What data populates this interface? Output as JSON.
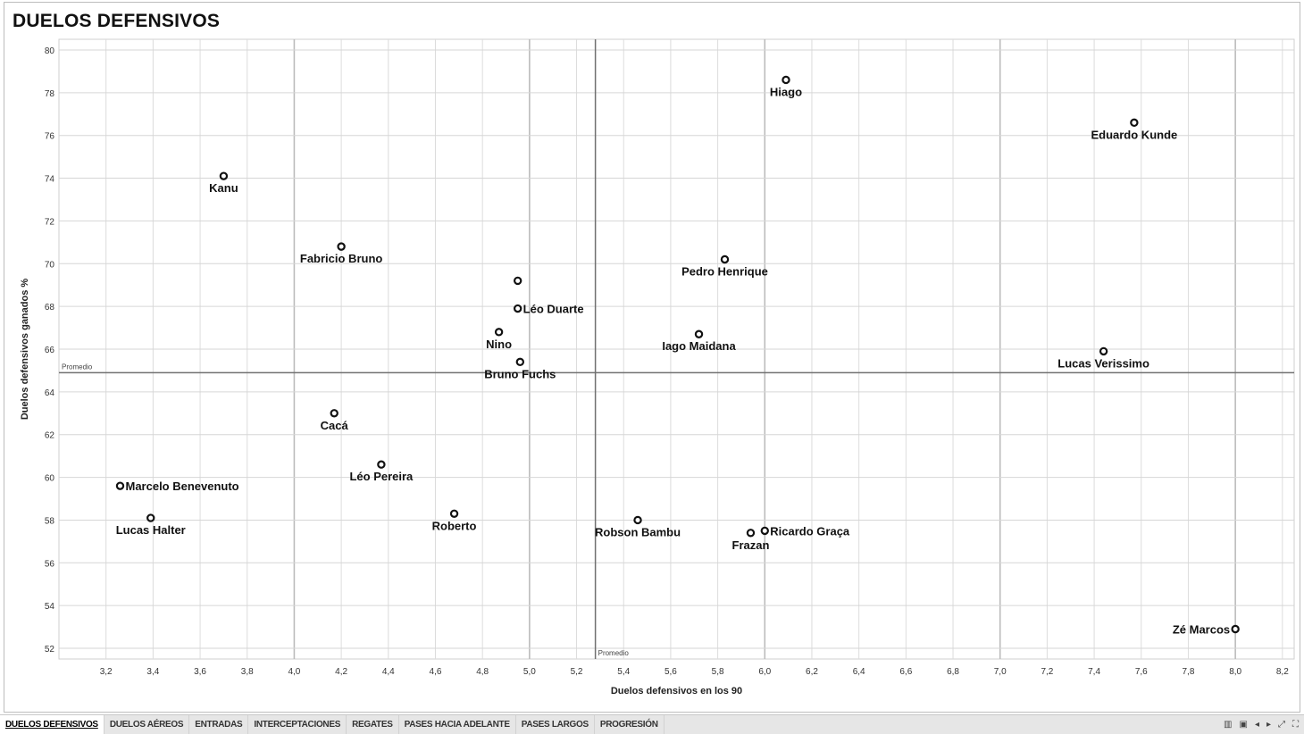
{
  "title": "DUELOS DEFENSIVOS",
  "tabs": [
    {
      "label": "DUELOS DEFENSIVOS",
      "active": true
    },
    {
      "label": "DUELOS AÉREOS",
      "active": false
    },
    {
      "label": "ENTRADAS",
      "active": false
    },
    {
      "label": "INTERCEPTACIONES",
      "active": false
    },
    {
      "label": "REGATES",
      "active": false
    },
    {
      "label": "PASES HACIA ADELANTE",
      "active": false
    },
    {
      "label": "PASES LARGOS",
      "active": false
    },
    {
      "label": "PROGRESIÓN",
      "active": false
    }
  ],
  "controls": [
    {
      "name": "sheets-icon",
      "glyph": "▥"
    },
    {
      "name": "present-icon",
      "glyph": "▣"
    },
    {
      "name": "prev-icon",
      "glyph": "◂"
    },
    {
      "name": "next-icon",
      "glyph": "▸"
    },
    {
      "name": "share-icon",
      "glyph": "⤢"
    },
    {
      "name": "fullscreen-icon",
      "glyph": "⛶"
    }
  ],
  "chart_data": {
    "type": "scatter",
    "title": "DUELOS DEFENSIVOS",
    "xlabel": "Duelos defensivos en los 90",
    "ylabel": "Duelos defensivos ganados %",
    "xlim": [
      3.0,
      8.25
    ],
    "ylim": [
      51.5,
      80.5
    ],
    "xticks": [
      "3,2",
      "3,4",
      "3,6",
      "3,8",
      "4,0",
      "4,2",
      "4,4",
      "4,6",
      "4,8",
      "5,0",
      "5,2",
      "5,4",
      "5,6",
      "5,8",
      "6,0",
      "6,2",
      "6,4",
      "6,6",
      "6,8",
      "7,0",
      "7,2",
      "7,4",
      "7,6",
      "7,8",
      "8,0",
      "8,2"
    ],
    "xtick_values": [
      3.2,
      3.4,
      3.6,
      3.8,
      4.0,
      4.2,
      4.4,
      4.6,
      4.8,
      5.0,
      5.2,
      5.4,
      5.6,
      5.8,
      6.0,
      6.2,
      6.4,
      6.6,
      6.8,
      7.0,
      7.2,
      7.4,
      7.6,
      7.8,
      8.0,
      8.2
    ],
    "yticks": [
      "52",
      "54",
      "56",
      "58",
      "60",
      "62",
      "64",
      "66",
      "68",
      "70",
      "72",
      "74",
      "76",
      "78",
      "80"
    ],
    "ytick_values": [
      52,
      54,
      56,
      58,
      60,
      62,
      64,
      66,
      68,
      70,
      72,
      74,
      76,
      78,
      80
    ],
    "grid": true,
    "reference_lines": {
      "x": {
        "value": 5.28,
        "label": "Promedio"
      },
      "y": {
        "value": 64.9,
        "label": "Promedio"
      }
    },
    "points": [
      {
        "name": "Hiago",
        "x": 6.09,
        "y": 78.6,
        "label_pos": "below"
      },
      {
        "name": "Eduardo Kunde",
        "x": 7.57,
        "y": 76.6,
        "label_pos": "below"
      },
      {
        "name": "Kanu",
        "x": 3.7,
        "y": 74.1,
        "label_pos": "below"
      },
      {
        "name": "Fabricio Bruno",
        "x": 4.2,
        "y": 70.8,
        "label_pos": "below"
      },
      {
        "name": "Pedro Henrique",
        "x": 5.83,
        "y": 70.2,
        "label_pos": "below"
      },
      {
        "name": "",
        "x": 4.95,
        "y": 69.2,
        "label_pos": "none"
      },
      {
        "name": "Léo Duarte",
        "x": 4.95,
        "y": 67.9,
        "label_pos": "right"
      },
      {
        "name": "Nino",
        "x": 4.87,
        "y": 66.8,
        "label_pos": "below"
      },
      {
        "name": "Iago Maidana",
        "x": 5.72,
        "y": 66.7,
        "label_pos": "below"
      },
      {
        "name": "Lucas Verissimo",
        "x": 7.44,
        "y": 65.9,
        "label_pos": "below"
      },
      {
        "name": "Bruno Fuchs",
        "x": 4.96,
        "y": 65.4,
        "label_pos": "below"
      },
      {
        "name": "Cacá",
        "x": 4.17,
        "y": 63.0,
        "label_pos": "below"
      },
      {
        "name": "Léo Pereira",
        "x": 4.37,
        "y": 60.6,
        "label_pos": "below"
      },
      {
        "name": "Marcelo Benevenuto",
        "x": 3.26,
        "y": 59.6,
        "label_pos": "right"
      },
      {
        "name": "Roberto",
        "x": 4.68,
        "y": 58.3,
        "label_pos": "below"
      },
      {
        "name": "Lucas Halter",
        "x": 3.39,
        "y": 58.1,
        "label_pos": "below"
      },
      {
        "name": "Robson Bambu",
        "x": 5.46,
        "y": 58.0,
        "label_pos": "below"
      },
      {
        "name": "Ricardo Graça",
        "x": 6.0,
        "y": 57.5,
        "label_pos": "right"
      },
      {
        "name": "Frazan",
        "x": 5.94,
        "y": 57.4,
        "label_pos": "below"
      },
      {
        "name": "Zé Marcos",
        "x": 8.0,
        "y": 52.9,
        "label_pos": "left"
      }
    ]
  }
}
